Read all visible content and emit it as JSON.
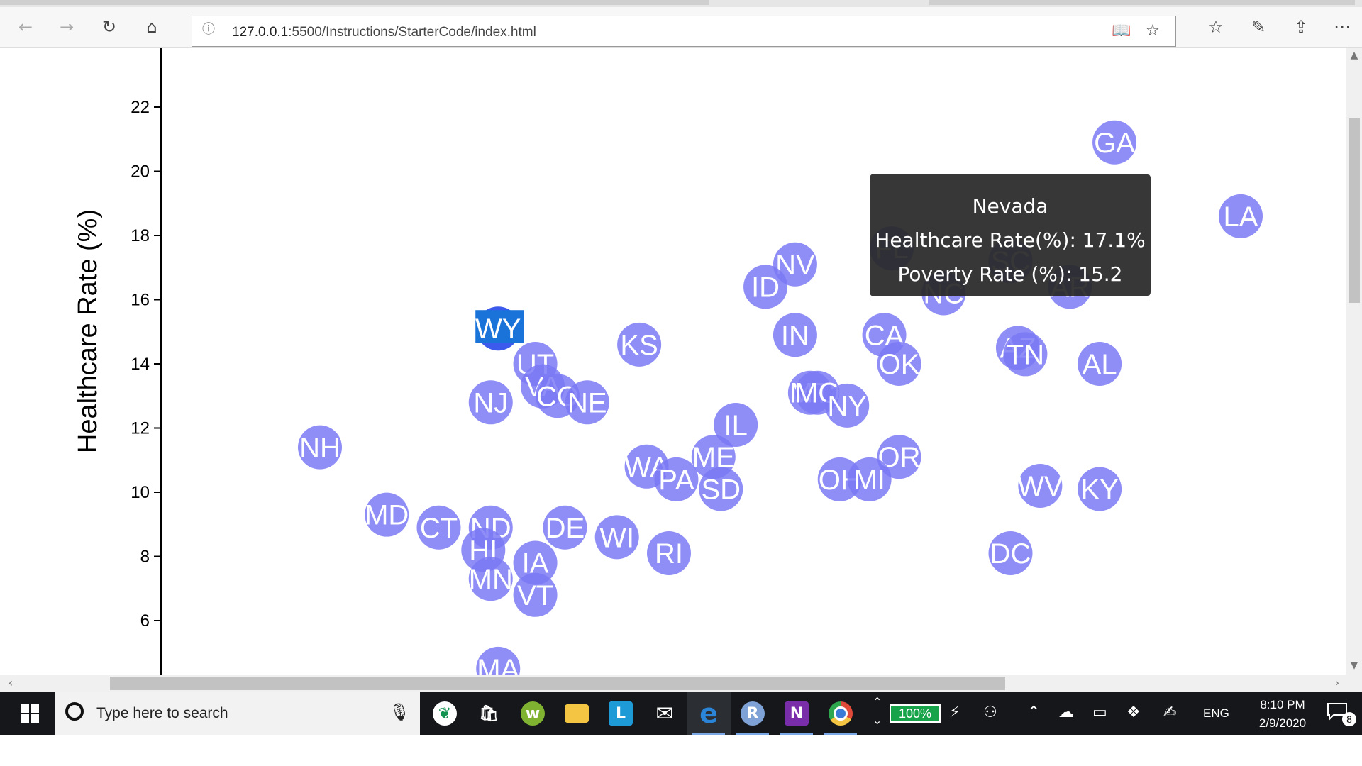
{
  "browser": {
    "url_host": "127.0.0.1",
    "url_rest": ":5500/Instructions/StarterCode/index.html",
    "buttons": {
      "back": "back-icon",
      "forward": "forward-icon",
      "refresh": "refresh-icon",
      "home": "home-icon",
      "reading_view": "reading-view-icon",
      "favorite": "star-icon",
      "favorites_hub": "favorites-hub-icon",
      "web_note": "pen-icon",
      "share": "share-icon",
      "more": "more-icon"
    }
  },
  "chart_data": {
    "type": "scatter",
    "ylabel": "Healthcare Rate (%)",
    "y_ticks": [
      "6",
      "8",
      "10",
      "12",
      "14",
      "16",
      "18",
      "20",
      "22"
    ],
    "ylim": [
      4.3,
      24.7
    ],
    "xlim": [
      8.4,
      21.9
    ],
    "marker_color": "#7b79f5",
    "highlight_color": "#1a3de8",
    "points": [
      {
        "label": "GA",
        "x": 19.5,
        "y": 20.9
      },
      {
        "label": "LA",
        "x": 21.2,
        "y": 18.6
      },
      {
        "label": "NV",
        "x": 15.2,
        "y": 17.1
      },
      {
        "label": "ID",
        "x": 14.8,
        "y": 16.4
      },
      {
        "label": "FL",
        "x": 16.5,
        "y": 17.6
      },
      {
        "label": "SC",
        "x": 18.1,
        "y": 17.2
      },
      {
        "label": "NC",
        "x": 17.2,
        "y": 16.2
      },
      {
        "label": "AR",
        "x": 18.9,
        "y": 16.4
      },
      {
        "label": "WY",
        "x": 11.2,
        "y": 15.1
      },
      {
        "label": "KS",
        "x": 13.1,
        "y": 14.6
      },
      {
        "label": "IN",
        "x": 15.2,
        "y": 14.9
      },
      {
        "label": "CA",
        "x": 16.4,
        "y": 14.9
      },
      {
        "label": "OK",
        "x": 16.6,
        "y": 14.0
      },
      {
        "label": "AZ",
        "x": 18.2,
        "y": 14.5
      },
      {
        "label": "TN",
        "x": 18.3,
        "y": 14.3
      },
      {
        "label": "AL",
        "x": 19.3,
        "y": 14.0
      },
      {
        "label": "UT",
        "x": 11.7,
        "y": 14.0
      },
      {
        "label": "VA",
        "x": 11.8,
        "y": 13.3
      },
      {
        "label": "CO",
        "x": 12.0,
        "y": 13.0
      },
      {
        "label": "NE",
        "x": 12.4,
        "y": 12.8
      },
      {
        "label": "NJ",
        "x": 11.1,
        "y": 12.8
      },
      {
        "label": "MT",
        "x": 15.4,
        "y": 13.1
      },
      {
        "label": "MO",
        "x": 15.5,
        "y": 13.1
      },
      {
        "label": "NY",
        "x": 15.9,
        "y": 12.7
      },
      {
        "label": "NH",
        "x": 8.8,
        "y": 11.4
      },
      {
        "label": "IL",
        "x": 14.4,
        "y": 12.1
      },
      {
        "label": "OR",
        "x": 16.6,
        "y": 11.1
      },
      {
        "label": "ME",
        "x": 14.1,
        "y": 11.1
      },
      {
        "label": "WA",
        "x": 13.2,
        "y": 10.8
      },
      {
        "label": "PA",
        "x": 13.6,
        "y": 10.4
      },
      {
        "label": "SD",
        "x": 14.2,
        "y": 10.1
      },
      {
        "label": "OH",
        "x": 15.8,
        "y": 10.4
      },
      {
        "label": "MI",
        "x": 16.2,
        "y": 10.4
      },
      {
        "label": "WV",
        "x": 18.5,
        "y": 10.2
      },
      {
        "label": "KY",
        "x": 19.3,
        "y": 10.1
      },
      {
        "label": "MD",
        "x": 9.7,
        "y": 9.3
      },
      {
        "label": "CT",
        "x": 10.4,
        "y": 8.9
      },
      {
        "label": "ND",
        "x": 11.1,
        "y": 8.9
      },
      {
        "label": "DE",
        "x": 12.1,
        "y": 8.9
      },
      {
        "label": "WI",
        "x": 12.8,
        "y": 8.6
      },
      {
        "label": "RI",
        "x": 13.5,
        "y": 8.1
      },
      {
        "label": "DC",
        "x": 18.1,
        "y": 8.1
      },
      {
        "label": "HI",
        "x": 11.0,
        "y": 8.2
      },
      {
        "label": "IA",
        "x": 11.7,
        "y": 7.8
      },
      {
        "label": "MN",
        "x": 11.1,
        "y": 7.3
      },
      {
        "label": "VT",
        "x": 11.7,
        "y": 6.8
      },
      {
        "label": "MA",
        "x": 11.2,
        "y": 4.5
      }
    ],
    "highlighted": "WY"
  },
  "tooltip": {
    "state": "Nevada",
    "healthcare_line": "Healthcare Rate(%): 17.1%",
    "poverty_line": "Poverty Rate (%): 15.2"
  },
  "taskbar": {
    "search_placeholder": "Type here to search",
    "apps": [
      {
        "name": "mongodb-compass-icon",
        "color": "#ffffff",
        "glyph": "❦"
      },
      {
        "name": "store-icon",
        "color": "#ffffff",
        "glyph": "🛍"
      },
      {
        "name": "w-app-icon",
        "color": "#7fb231",
        "glyph": "w"
      },
      {
        "name": "file-explorer-icon",
        "color": "#f4c542",
        "glyph": ""
      },
      {
        "name": "l-app-icon",
        "color": "#1e9ad6",
        "glyph": "L"
      },
      {
        "name": "mail-icon",
        "color": "#ffffff",
        "glyph": "✉"
      },
      {
        "name": "edge-icon",
        "color": "#2a85d9",
        "glyph": "e"
      },
      {
        "name": "r-app-icon",
        "color": "#7fa2d6",
        "glyph": "R"
      },
      {
        "name": "onenote-icon",
        "color": "#7a2da8",
        "glyph": "N"
      },
      {
        "name": "chrome-icon",
        "color": "#e04a3a",
        "glyph": ""
      }
    ],
    "battery": "100%",
    "language": "ENG",
    "time": "8:10 PM",
    "date": "2/9/2020",
    "notification_count": "8"
  }
}
